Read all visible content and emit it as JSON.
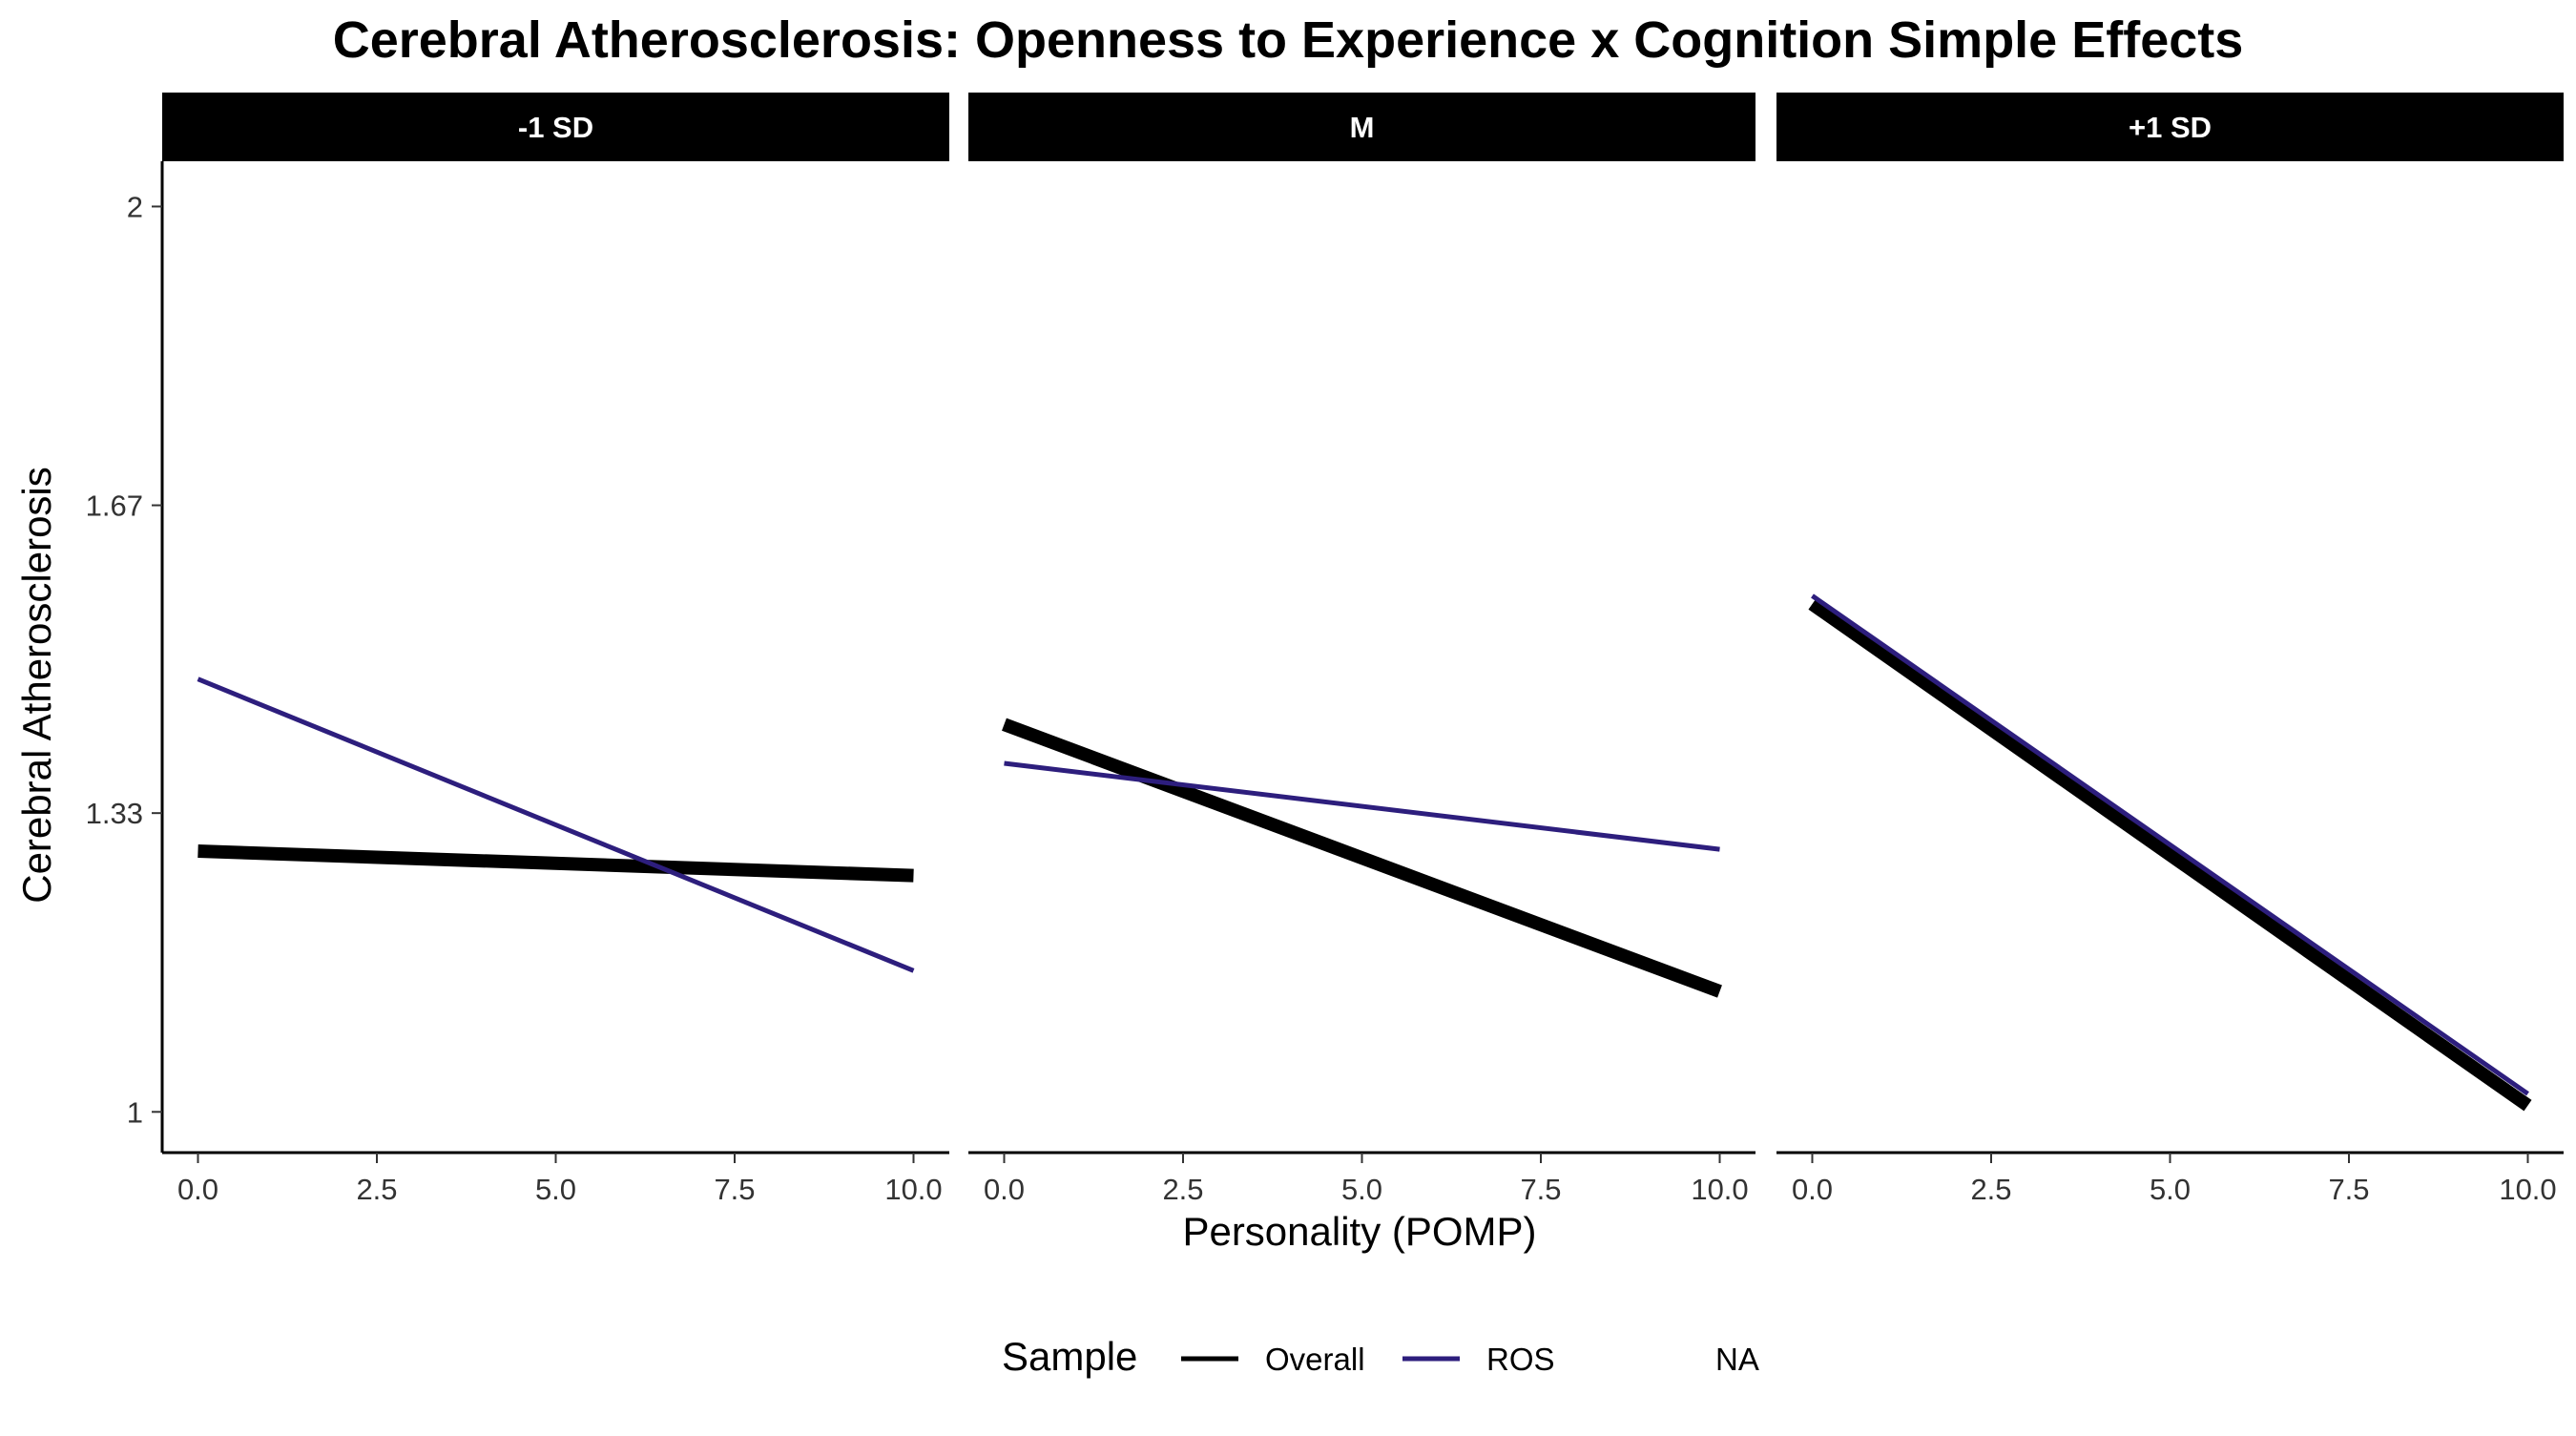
{
  "chart_data": {
    "type": "line",
    "title": "Cerebral Atherosclerosis: Openness to Experience x Cognition Simple Effects",
    "xlabel": "Personality (POMP)",
    "ylabel": "Cerebral Atherosclerosis",
    "xlim": [
      -0.5,
      10.5
    ],
    "ylim": [
      0.955,
      2.05
    ],
    "x_ticks": [
      0,
      2.5,
      5,
      7.5,
      10
    ],
    "x_tick_labels": [
      "0.0",
      "2.5",
      "5.0",
      "7.5",
      "10.0"
    ],
    "y_ticks": [
      1,
      1.33,
      1.67,
      2
    ],
    "y_tick_labels": [
      "1",
      "1.33",
      "1.67",
      "2"
    ],
    "grid": false,
    "legend": {
      "title": "Sample",
      "placement": "bottom",
      "entries": [
        {
          "label": "Overall",
          "color": "#000000"
        },
        {
          "label": "ROS",
          "color": "#2d1e7d"
        },
        {
          "label": "NA",
          "color": ""
        }
      ]
    },
    "panels": [
      {
        "label": "-1 SD",
        "series": [
          {
            "name": "Overall",
            "color": "#000000",
            "x": [
              0,
              10
            ],
            "y": [
              1.288,
              1.261
            ]
          },
          {
            "name": "ROS",
            "color": "#2d1e7d",
            "x": [
              0,
              10
            ],
            "y": [
              1.478,
              1.156
            ]
          }
        ]
      },
      {
        "label": "M",
        "series": [
          {
            "name": "Overall",
            "color": "#000000",
            "x": [
              0,
              10
            ],
            "y": [
              1.428,
              1.133
            ]
          },
          {
            "name": "ROS",
            "color": "#2d1e7d",
            "x": [
              0,
              10
            ],
            "y": [
              1.385,
              1.29
            ]
          }
        ]
      },
      {
        "label": "+1 SD",
        "series": [
          {
            "name": "Overall",
            "color": "#000000",
            "x": [
              0,
              10
            ],
            "y": [
              1.561,
              1.007
            ]
          },
          {
            "name": "ROS",
            "color": "#2d1e7d",
            "x": [
              0,
              10
            ],
            "y": [
              1.57,
              1.02
            ]
          }
        ]
      }
    ]
  }
}
